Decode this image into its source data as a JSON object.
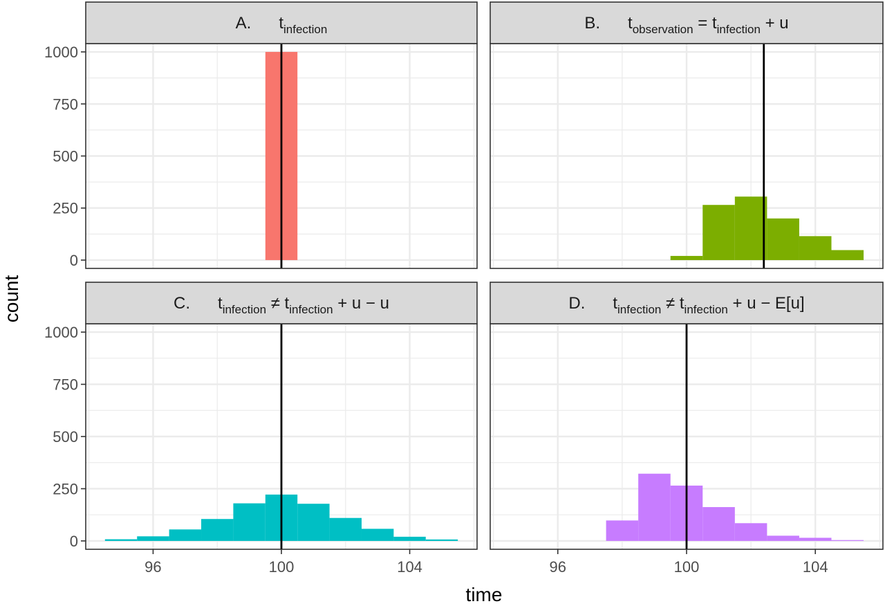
{
  "chart_data": [
    {
      "type": "bar",
      "panel": "A",
      "strip": {
        "letter": "A.",
        "parts": [
          {
            "t": "t"
          },
          {
            "t": "infection",
            "sub": true
          }
        ]
      },
      "color": "#F8766D",
      "bins": [
        {
          "x0": 99.5,
          "x1": 100.5,
          "count": 1000
        }
      ],
      "vline": 100
    },
    {
      "type": "bar",
      "panel": "B",
      "strip": {
        "letter": "B.",
        "parts": [
          {
            "t": "t"
          },
          {
            "t": "observation",
            "sub": true
          },
          {
            "t": " = t"
          },
          {
            "t": "infection",
            "sub": true
          },
          {
            "t": " + u"
          }
        ]
      },
      "color": "#7CAE00",
      "bins": [
        {
          "x0": 99.5,
          "x1": 100.5,
          "count": 20
        },
        {
          "x0": 100.5,
          "x1": 101.5,
          "count": 265
        },
        {
          "x0": 101.5,
          "x1": 102.5,
          "count": 305
        },
        {
          "x0": 102.5,
          "x1": 103.5,
          "count": 200
        },
        {
          "x0": 103.5,
          "x1": 104.5,
          "count": 115
        },
        {
          "x0": 104.5,
          "x1": 105.5,
          "count": 48
        }
      ],
      "vline": 102.4
    },
    {
      "type": "bar",
      "panel": "C",
      "strip": {
        "letter": "C.",
        "parts": [
          {
            "t": "t"
          },
          {
            "t": "infection",
            "sub": true
          },
          {
            "t": " ≠ t"
          },
          {
            "t": "infection",
            "sub": true
          },
          {
            "t": " + u − u"
          }
        ]
      },
      "color": "#00BFC4",
      "bins": [
        {
          "x0": 94.5,
          "x1": 95.5,
          "count": 8
        },
        {
          "x0": 95.5,
          "x1": 96.5,
          "count": 22
        },
        {
          "x0": 96.5,
          "x1": 97.5,
          "count": 55
        },
        {
          "x0": 97.5,
          "x1": 98.5,
          "count": 105
        },
        {
          "x0": 98.5,
          "x1": 99.5,
          "count": 180
        },
        {
          "x0": 99.5,
          "x1": 100.5,
          "count": 222
        },
        {
          "x0": 100.5,
          "x1": 101.5,
          "count": 178
        },
        {
          "x0": 101.5,
          "x1": 102.5,
          "count": 110
        },
        {
          "x0": 102.5,
          "x1": 103.5,
          "count": 58
        },
        {
          "x0": 103.5,
          "x1": 104.5,
          "count": 20
        },
        {
          "x0": 104.5,
          "x1": 105.5,
          "count": 7
        }
      ],
      "vline": 100
    },
    {
      "type": "bar",
      "panel": "D",
      "strip": {
        "letter": "D.",
        "parts": [
          {
            "t": "t"
          },
          {
            "t": "infection",
            "sub": true
          },
          {
            "t": " ≠ t"
          },
          {
            "t": "infection",
            "sub": true
          },
          {
            "t": " + u − E[u]"
          }
        ]
      },
      "color": "#C77CFF",
      "bins": [
        {
          "x0": 97.5,
          "x1": 98.5,
          "count": 98
        },
        {
          "x0": 98.5,
          "x1": 99.5,
          "count": 322
        },
        {
          "x0": 99.5,
          "x1": 100.5,
          "count": 265
        },
        {
          "x0": 100.5,
          "x1": 101.5,
          "count": 162
        },
        {
          "x0": 101.5,
          "x1": 102.5,
          "count": 85
        },
        {
          "x0": 102.5,
          "x1": 103.5,
          "count": 25
        },
        {
          "x0": 103.5,
          "x1": 104.5,
          "count": 15
        },
        {
          "x0": 104.5,
          "x1": 105.5,
          "count": 4
        }
      ],
      "vline": 100
    }
  ],
  "axes": {
    "xlabel": "time",
    "ylabel": "count",
    "xlim": [
      93.9,
      106.1
    ],
    "ylim": [
      -40,
      1040
    ],
    "x_ticks": [
      96,
      100,
      104
    ],
    "y_ticks": [
      0,
      250,
      500,
      750,
      1000
    ],
    "grid": true
  },
  "colors": {
    "strip_bg": "#D9D9D9",
    "panel_border": "#333333",
    "grid_major": "#EBEBEB",
    "vline": "#000000"
  }
}
